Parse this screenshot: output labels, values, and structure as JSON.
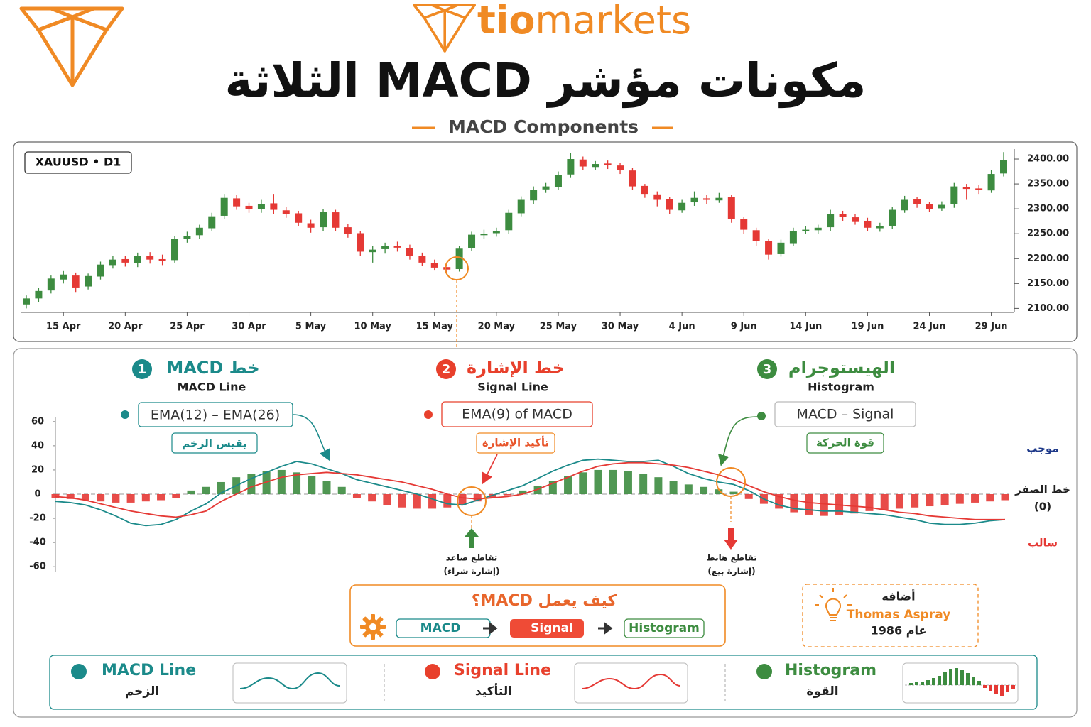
{
  "header": {
    "brand_tio": "tio",
    "brand_markets": "markets",
    "title": "مكونات مؤشر MACD الثلاثة",
    "subtitle": "MACD Components"
  },
  "chart_data": [
    {
      "type": "candlestick",
      "label": "XAUUSD • D1",
      "categories": [
        null,
        null,
        null,
        "15 Apr",
        null,
        null,
        null,
        null,
        "20 Apr",
        null,
        null,
        null,
        null,
        "25 Apr",
        null,
        null,
        null,
        null,
        "30 Apr",
        null,
        null,
        null,
        null,
        "5 May",
        null,
        null,
        null,
        null,
        "10 May",
        null,
        null,
        null,
        null,
        "15 May",
        null,
        null,
        null,
        null,
        "20 May",
        null,
        null,
        null,
        null,
        "25 May",
        null,
        null,
        null,
        null,
        "30 May",
        null,
        null,
        null,
        null,
        "4 Jun",
        null,
        null,
        null,
        null,
        "9 Jun",
        null,
        null,
        null,
        null,
        "14 Jun",
        null,
        null,
        null,
        null,
        "19 Jun",
        null,
        null,
        null,
        null,
        "24 Jun",
        null,
        null,
        null,
        null,
        "29 Jun",
        null
      ],
      "open": [
        2108,
        2120,
        2136,
        2158,
        2166,
        2144,
        2164,
        2187,
        2199,
        2191,
        2206,
        2199,
        2197,
        2239,
        2247,
        2261,
        2286,
        2321,
        2306,
        2299,
        2311,
        2297,
        2291,
        2271,
        2263,
        2293,
        2263,
        2251,
        2213,
        2219,
        2226,
        2221,
        2206,
        2191,
        2183,
        2179,
        2221,
        2247,
        2251,
        2257,
        2291,
        2317,
        2339,
        2344,
        2369,
        2399,
        2384,
        2391,
        2387,
        2377,
        2346,
        2329,
        2319,
        2297,
        2313,
        2321,
        2317,
        2323,
        2279,
        2257,
        2236,
        2209,
        2231,
        2257,
        2257,
        2263,
        2289,
        2283,
        2276,
        2261,
        2266,
        2297,
        2319,
        2309,
        2301,
        2309,
        2344,
        2341,
        2337,
        2371
      ],
      "high": [
        2126,
        2141,
        2166,
        2175,
        2172,
        2170,
        2194,
        2205,
        2206,
        2212,
        2213,
        2208,
        2246,
        2254,
        2268,
        2292,
        2330,
        2328,
        2312,
        2318,
        2330,
        2304,
        2296,
        2278,
        2300,
        2298,
        2270,
        2256,
        2226,
        2232,
        2234,
        2228,
        2212,
        2198,
        2190,
        2226,
        2254,
        2258,
        2262,
        2298,
        2325,
        2345,
        2352,
        2375,
        2412,
        2405,
        2396,
        2397,
        2392,
        2382,
        2350,
        2335,
        2324,
        2318,
        2335,
        2328,
        2332,
        2328,
        2284,
        2262,
        2240,
        2238,
        2262,
        2266,
        2268,
        2298,
        2296,
        2290,
        2282,
        2272,
        2304,
        2326,
        2324,
        2314,
        2315,
        2352,
        2350,
        2348,
        2378,
        2414
      ],
      "low": [
        2100,
        2112,
        2130,
        2150,
        2133,
        2138,
        2158,
        2180,
        2184,
        2183,
        2190,
        2187,
        2192,
        2232,
        2240,
        2255,
        2280,
        2298,
        2292,
        2292,
        2290,
        2282,
        2265,
        2252,
        2255,
        2255,
        2242,
        2206,
        2192,
        2210,
        2214,
        2198,
        2185,
        2176,
        2168,
        2174,
        2215,
        2240,
        2244,
        2250,
        2285,
        2310,
        2332,
        2338,
        2362,
        2378,
        2378,
        2380,
        2370,
        2338,
        2322,
        2305,
        2290,
        2292,
        2306,
        2310,
        2312,
        2272,
        2250,
        2226,
        2198,
        2204,
        2225,
        2250,
        2250,
        2256,
        2276,
        2268,
        2255,
        2254,
        2260,
        2292,
        2302,
        2294,
        2296,
        2302,
        2318,
        2330,
        2332,
        2365
      ],
      "close": [
        2120,
        2135,
        2160,
        2168,
        2142,
        2165,
        2188,
        2198,
        2192,
        2205,
        2198,
        2196,
        2240,
        2246,
        2262,
        2285,
        2322,
        2305,
        2300,
        2310,
        2298,
        2290,
        2272,
        2262,
        2294,
        2262,
        2250,
        2214,
        2218,
        2225,
        2222,
        2205,
        2192,
        2182,
        2178,
        2220,
        2248,
        2250,
        2256,
        2292,
        2318,
        2338,
        2345,
        2368,
        2400,
        2385,
        2390,
        2388,
        2378,
        2345,
        2330,
        2318,
        2298,
        2312,
        2322,
        2318,
        2322,
        2280,
        2258,
        2235,
        2208,
        2232,
        2256,
        2258,
        2262,
        2290,
        2284,
        2275,
        2262,
        2265,
        2298,
        2318,
        2310,
        2300,
        2308,
        2345,
        2340,
        2338,
        2370,
        2398
      ],
      "up_color": "#3d8c40",
      "down_color": "#e53935",
      "ylim": [
        2092,
        2420
      ],
      "yticks": [
        {
          "value": 2100,
          "label": "2100.00"
        },
        {
          "value": 2150,
          "label": "2150.00"
        },
        {
          "value": 2200,
          "label": "2200.00"
        },
        {
          "value": 2250,
          "label": "2250.00"
        },
        {
          "value": 2300,
          "label": "2300.00"
        },
        {
          "value": 2350,
          "label": "2350.00"
        },
        {
          "value": 2400,
          "label": "2400.00"
        }
      ]
    },
    {
      "type": "macd",
      "series": [
        {
          "name": "MACD Line",
          "color": "#1b8a8a",
          "values": [
            -6,
            -7,
            -9,
            -13,
            -18,
            -24,
            -26,
            -25,
            -21,
            -14,
            -8,
            1,
            7,
            13,
            18,
            23,
            27,
            25,
            21,
            17,
            12,
            9,
            6,
            3,
            0,
            -4,
            -8,
            -9,
            -5,
            -1,
            3,
            7,
            13,
            19,
            24,
            28,
            29,
            28,
            27,
            27,
            28,
            23,
            17,
            13,
            10,
            8,
            3,
            -4,
            -9,
            -12,
            -13,
            -14,
            -14,
            -15,
            -16,
            -17,
            -19,
            -21,
            -24,
            -25,
            -25,
            -24,
            -22,
            -21
          ]
        },
        {
          "name": "Signal Line",
          "color": "#e53935",
          "values": [
            -2,
            -3,
            -5,
            -8,
            -11,
            -14,
            -16,
            -18,
            -19,
            -17,
            -14,
            -6,
            0,
            6,
            10,
            14,
            16,
            17,
            18,
            17,
            16,
            14,
            12,
            10,
            7,
            4,
            0,
            -3,
            -4,
            -3,
            -2,
            0,
            4,
            9,
            14,
            19,
            23,
            25,
            26,
            26,
            25,
            24,
            22,
            19,
            16,
            12,
            7,
            2,
            -2,
            -5,
            -7,
            -8,
            -9,
            -10,
            -11,
            -13,
            -15,
            -16,
            -18,
            -19,
            -20,
            -21,
            -21,
            -21
          ]
        },
        {
          "name": "Histogram",
          "color": "#3d8c40",
          "down_color": "#e53935",
          "values": [
            -3,
            -4,
            -5,
            -6,
            -7,
            -7,
            -6,
            -5,
            -3,
            3,
            6,
            10,
            14,
            17,
            19,
            20,
            18,
            15,
            11,
            6,
            -3,
            -6,
            -9,
            -11,
            -12,
            -12,
            -11,
            -9,
            -6,
            -3,
            -1,
            3,
            7,
            11,
            15,
            18,
            20,
            20,
            19,
            17,
            14,
            11,
            8,
            6,
            4,
            2,
            -4,
            -8,
            -12,
            -15,
            -17,
            -18,
            -17,
            -16,
            -14,
            -13,
            -12,
            -11,
            -10,
            -9,
            -8,
            -7,
            -6,
            -5
          ]
        }
      ],
      "ylim": [
        -64,
        64
      ],
      "yticks": [
        60,
        40,
        20,
        0,
        -20,
        -40,
        -60
      ],
      "zero_line": true,
      "annotations": {
        "bullish": "تقاطع صاعد",
        "bullish_note": "(إشارة شراء)",
        "bearish": "تقاطع هابط",
        "bearish_note": "(إشارة بيع)",
        "positive": "موجب",
        "zero": "خط الصفر",
        "zero_value": "(0)",
        "negative": "سالب"
      }
    }
  ],
  "components": [
    {
      "number": "1",
      "title": "خط MACD",
      "subtitle": "MACD Line",
      "formula": "EMA(12) – EMA(26)",
      "tag": "يقيس الزخم"
    },
    {
      "number": "2",
      "title": "خط الإشارة",
      "subtitle": "Signal Line",
      "formula": "EMA(9) of MACD",
      "tag": "تأكيد الإشارة"
    },
    {
      "number": "3",
      "title": "الهيستوجرام",
      "subtitle": "Histogram",
      "formula": "MACD – Signal",
      "tag": "قوة الحركة"
    }
  ],
  "how": {
    "title": "كيف يعمل MACD؟",
    "steps": [
      "MACD",
      "Signal",
      "Histogram"
    ]
  },
  "credit": {
    "line1": "أضافه",
    "name": "Thomas Aspray",
    "year": "عام 1986"
  },
  "legend_notes": [
    "الزخم",
    "التأكيد",
    "القوة"
  ]
}
